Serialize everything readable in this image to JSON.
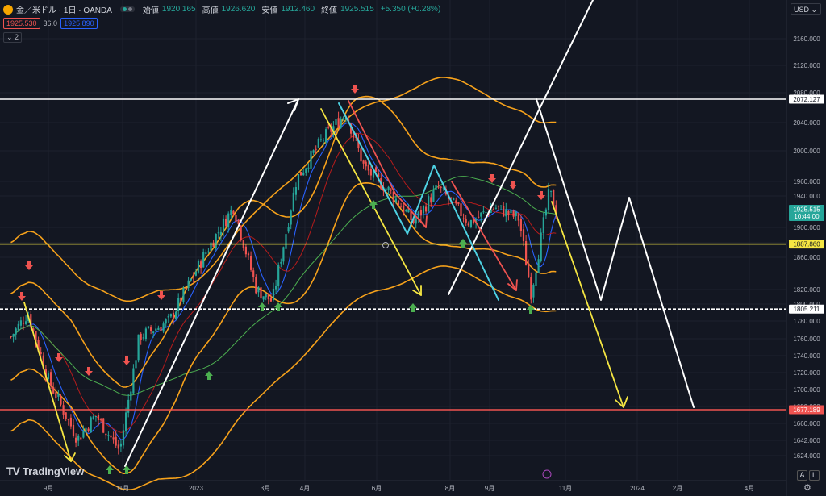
{
  "header": {
    "symbol": "金／米ドル · 1日 · OANDA",
    "open_label": "始値",
    "open": "1920.165",
    "high_label": "高値",
    "high": "1926.620",
    "low_label": "安値",
    "low": "1912.460",
    "close_label": "終値",
    "close": "1925.515",
    "change": "+5.350 (+0.28%)"
  },
  "quote": {
    "bid": "1925.530",
    "spread": "36.0",
    "ask": "1925.890"
  },
  "indicator_count": "2",
  "currency": "USD",
  "brand": "TradingView",
  "corner_a": "A",
  "corner_l": "L",
  "colors": {
    "bg": "#131722",
    "up": "#26a69a",
    "down": "#ef5350",
    "orange": "#f7a21b",
    "yellow": "#f5e642",
    "white": "#ffffff",
    "cyan": "#4dd0e1"
  },
  "chart_data": {
    "type": "line",
    "y_ticks": [
      "2160.000",
      "2120.000",
      "2080.000",
      "2040.000",
      "2000.000",
      "1960.000",
      "1940.000",
      "1900.000",
      "1880.000",
      "1860.000",
      "1820.000",
      "1800.000",
      "1780.000",
      "1760.000",
      "1740.000",
      "1720.000",
      "1700.000",
      "1680.000",
      "1660.000",
      "1642.000",
      "1624.000"
    ],
    "x_ticks": [
      "9月",
      "11月",
      "2023",
      "3月",
      "4月",
      "6月",
      "8月",
      "9月",
      "11月",
      "2024",
      "2月",
      "4月"
    ],
    "price_labels": [
      {
        "value": "2072.127",
        "style": "white"
      },
      {
        "value": "1925.515",
        "sub": "10:44:00",
        "style": "teal"
      },
      {
        "value": "1887.860",
        "style": "yellow"
      },
      {
        "value": "1805.211",
        "style": "white"
      },
      {
        "value": "1677.189",
        "style": "red"
      }
    ],
    "levels": [
      {
        "price": 2072.127,
        "color": "#ffffff"
      },
      {
        "price": 1887.86,
        "color": "#f5e642"
      },
      {
        "price": 1805.211,
        "color": "#ffffff"
      },
      {
        "price": 1677.189,
        "color": "#ef5350"
      }
    ],
    "price_path": [
      [
        "2022-08-01",
        1770
      ],
      [
        "2022-08-15",
        1800
      ],
      [
        "2022-09-01",
        1715
      ],
      [
        "2022-09-25",
        1640
      ],
      [
        "2022-10-10",
        1670
      ],
      [
        "2022-10-30",
        1625
      ],
      [
        "2022-11-15",
        1770
      ],
      [
        "2022-12-10",
        1790
      ],
      [
        "2023-01-10",
        1880
      ],
      [
        "2023-02-01",
        1935
      ],
      [
        "2023-02-20",
        1830
      ],
      [
        "2023-03-05",
        1815
      ],
      [
        "2023-03-25",
        1970
      ],
      [
        "2023-04-15",
        2020
      ],
      [
        "2023-05-05",
        2055
      ],
      [
        "2023-05-20",
        1985
      ],
      [
        "2023-06-10",
        1955
      ],
      [
        "2023-06-30",
        1915
      ],
      [
        "2023-07-20",
        1960
      ],
      [
        "2023-08-15",
        1915
      ],
      [
        "2023-09-05",
        1935
      ],
      [
        "2023-09-25",
        1920
      ],
      [
        "2023-10-05",
        1825
      ],
      [
        "2023-10-20",
        1955
      ],
      [
        "2023-10-27",
        1925.515
      ]
    ],
    "ylim": [
      1615,
      2185
    ]
  }
}
